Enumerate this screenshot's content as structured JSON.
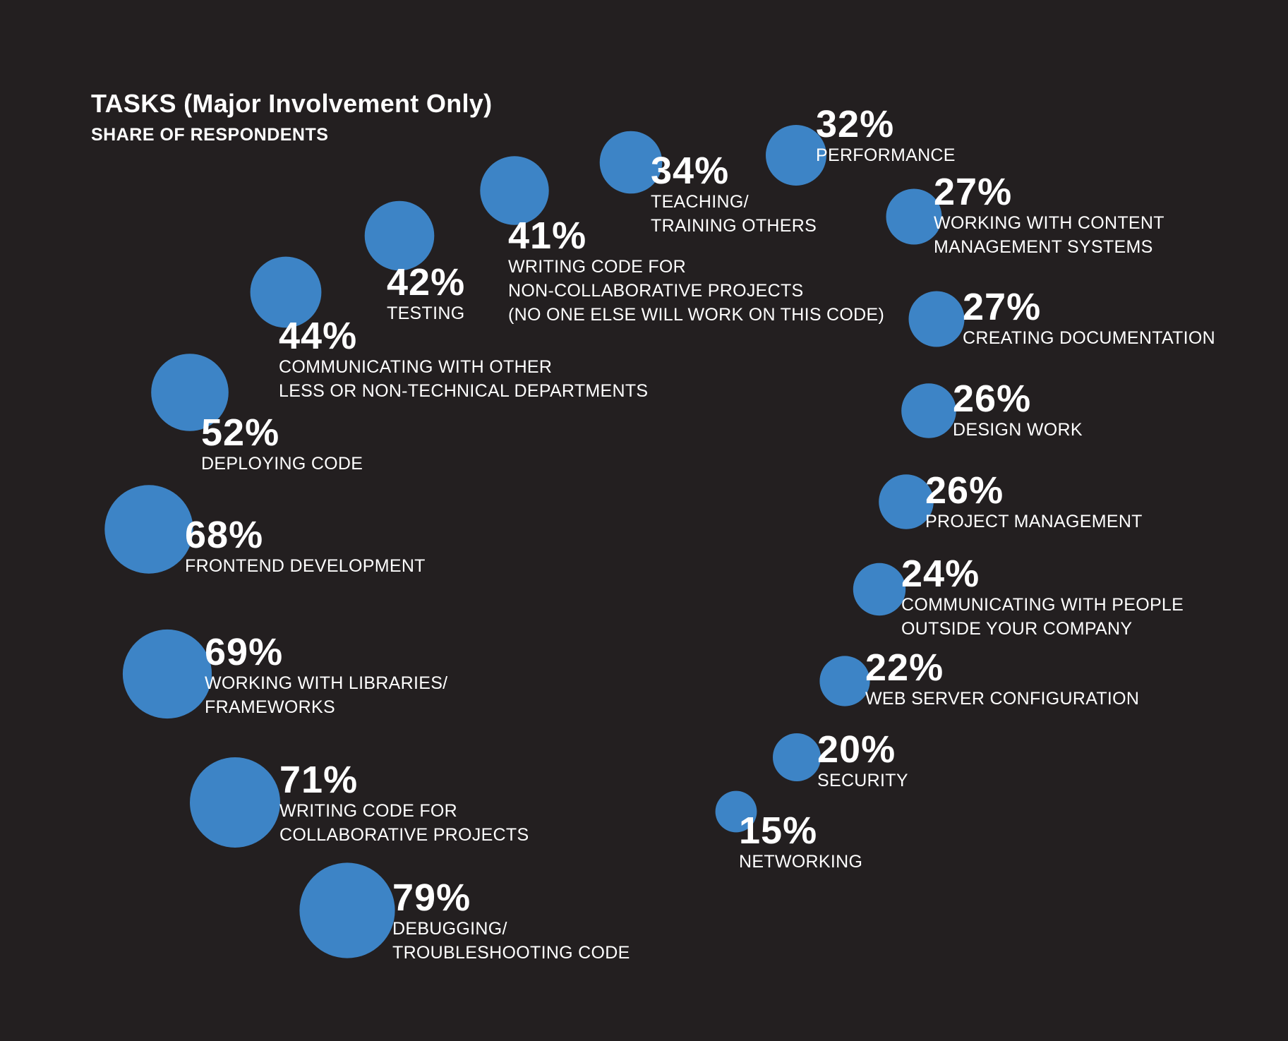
{
  "chart_data": {
    "type": "bubble",
    "title": "TASKS (Major Involvement Only)",
    "subtitle": "SHARE OF RESPONDENTS",
    "bubble_color": "#3d84c6",
    "background": "#231f20",
    "items": [
      {
        "value": 79,
        "label": "79%",
        "name_lines": [
          "DEBUGGING/",
          "TROUBLESHOOTING CODE"
        ]
      },
      {
        "value": 71,
        "label": "71%",
        "name_lines": [
          "WRITING CODE FOR",
          "COLLABORATIVE PROJECTS"
        ]
      },
      {
        "value": 69,
        "label": "69%",
        "name_lines": [
          "WORKING WITH LIBRARIES/",
          "FRAMEWORKS"
        ]
      },
      {
        "value": 68,
        "label": "68%",
        "name_lines": [
          "FRONTEND DEVELOPMENT"
        ]
      },
      {
        "value": 52,
        "label": "52%",
        "name_lines": [
          "DEPLOYING CODE"
        ]
      },
      {
        "value": 44,
        "label": "44%",
        "name_lines": [
          "COMMUNICATING WITH OTHER",
          "LESS OR NON-TECHNICAL DEPARTMENTS"
        ]
      },
      {
        "value": 42,
        "label": "42%",
        "name_lines": [
          "TESTING"
        ]
      },
      {
        "value": 41,
        "label": "41%",
        "name_lines": [
          "WRITING CODE FOR",
          "NON-COLLABORATIVE PROJECTS",
          "(NO ONE ELSE WILL WORK ON THIS CODE)"
        ]
      },
      {
        "value": 34,
        "label": "34%",
        "name_lines": [
          "TEACHING/",
          "TRAINING OTHERS"
        ]
      },
      {
        "value": 32,
        "label": "32%",
        "name_lines": [
          "PERFORMANCE"
        ]
      },
      {
        "value": 27,
        "label": "27%",
        "name_lines": [
          "WORKING WITH CONTENT",
          "MANAGEMENT SYSTEMS"
        ]
      },
      {
        "value": 27,
        "label": "27%",
        "name_lines": [
          "CREATING DOCUMENTATION"
        ]
      },
      {
        "value": 26,
        "label": "26%",
        "name_lines": [
          "DESIGN WORK"
        ]
      },
      {
        "value": 26,
        "label": "26%",
        "name_lines": [
          "PROJECT MANAGEMENT"
        ]
      },
      {
        "value": 24,
        "label": "24%",
        "name_lines": [
          "COMMUNICATING WITH PEOPLE",
          "OUTSIDE YOUR COMPANY"
        ]
      },
      {
        "value": 22,
        "label": "22%",
        "name_lines": [
          "WEB SERVER CONFIGURATION"
        ]
      },
      {
        "value": 20,
        "label": "20%",
        "name_lines": [
          "SECURITY"
        ]
      },
      {
        "value": 15,
        "label": "15%",
        "name_lines": [
          "NETWORKING"
        ]
      }
    ]
  }
}
